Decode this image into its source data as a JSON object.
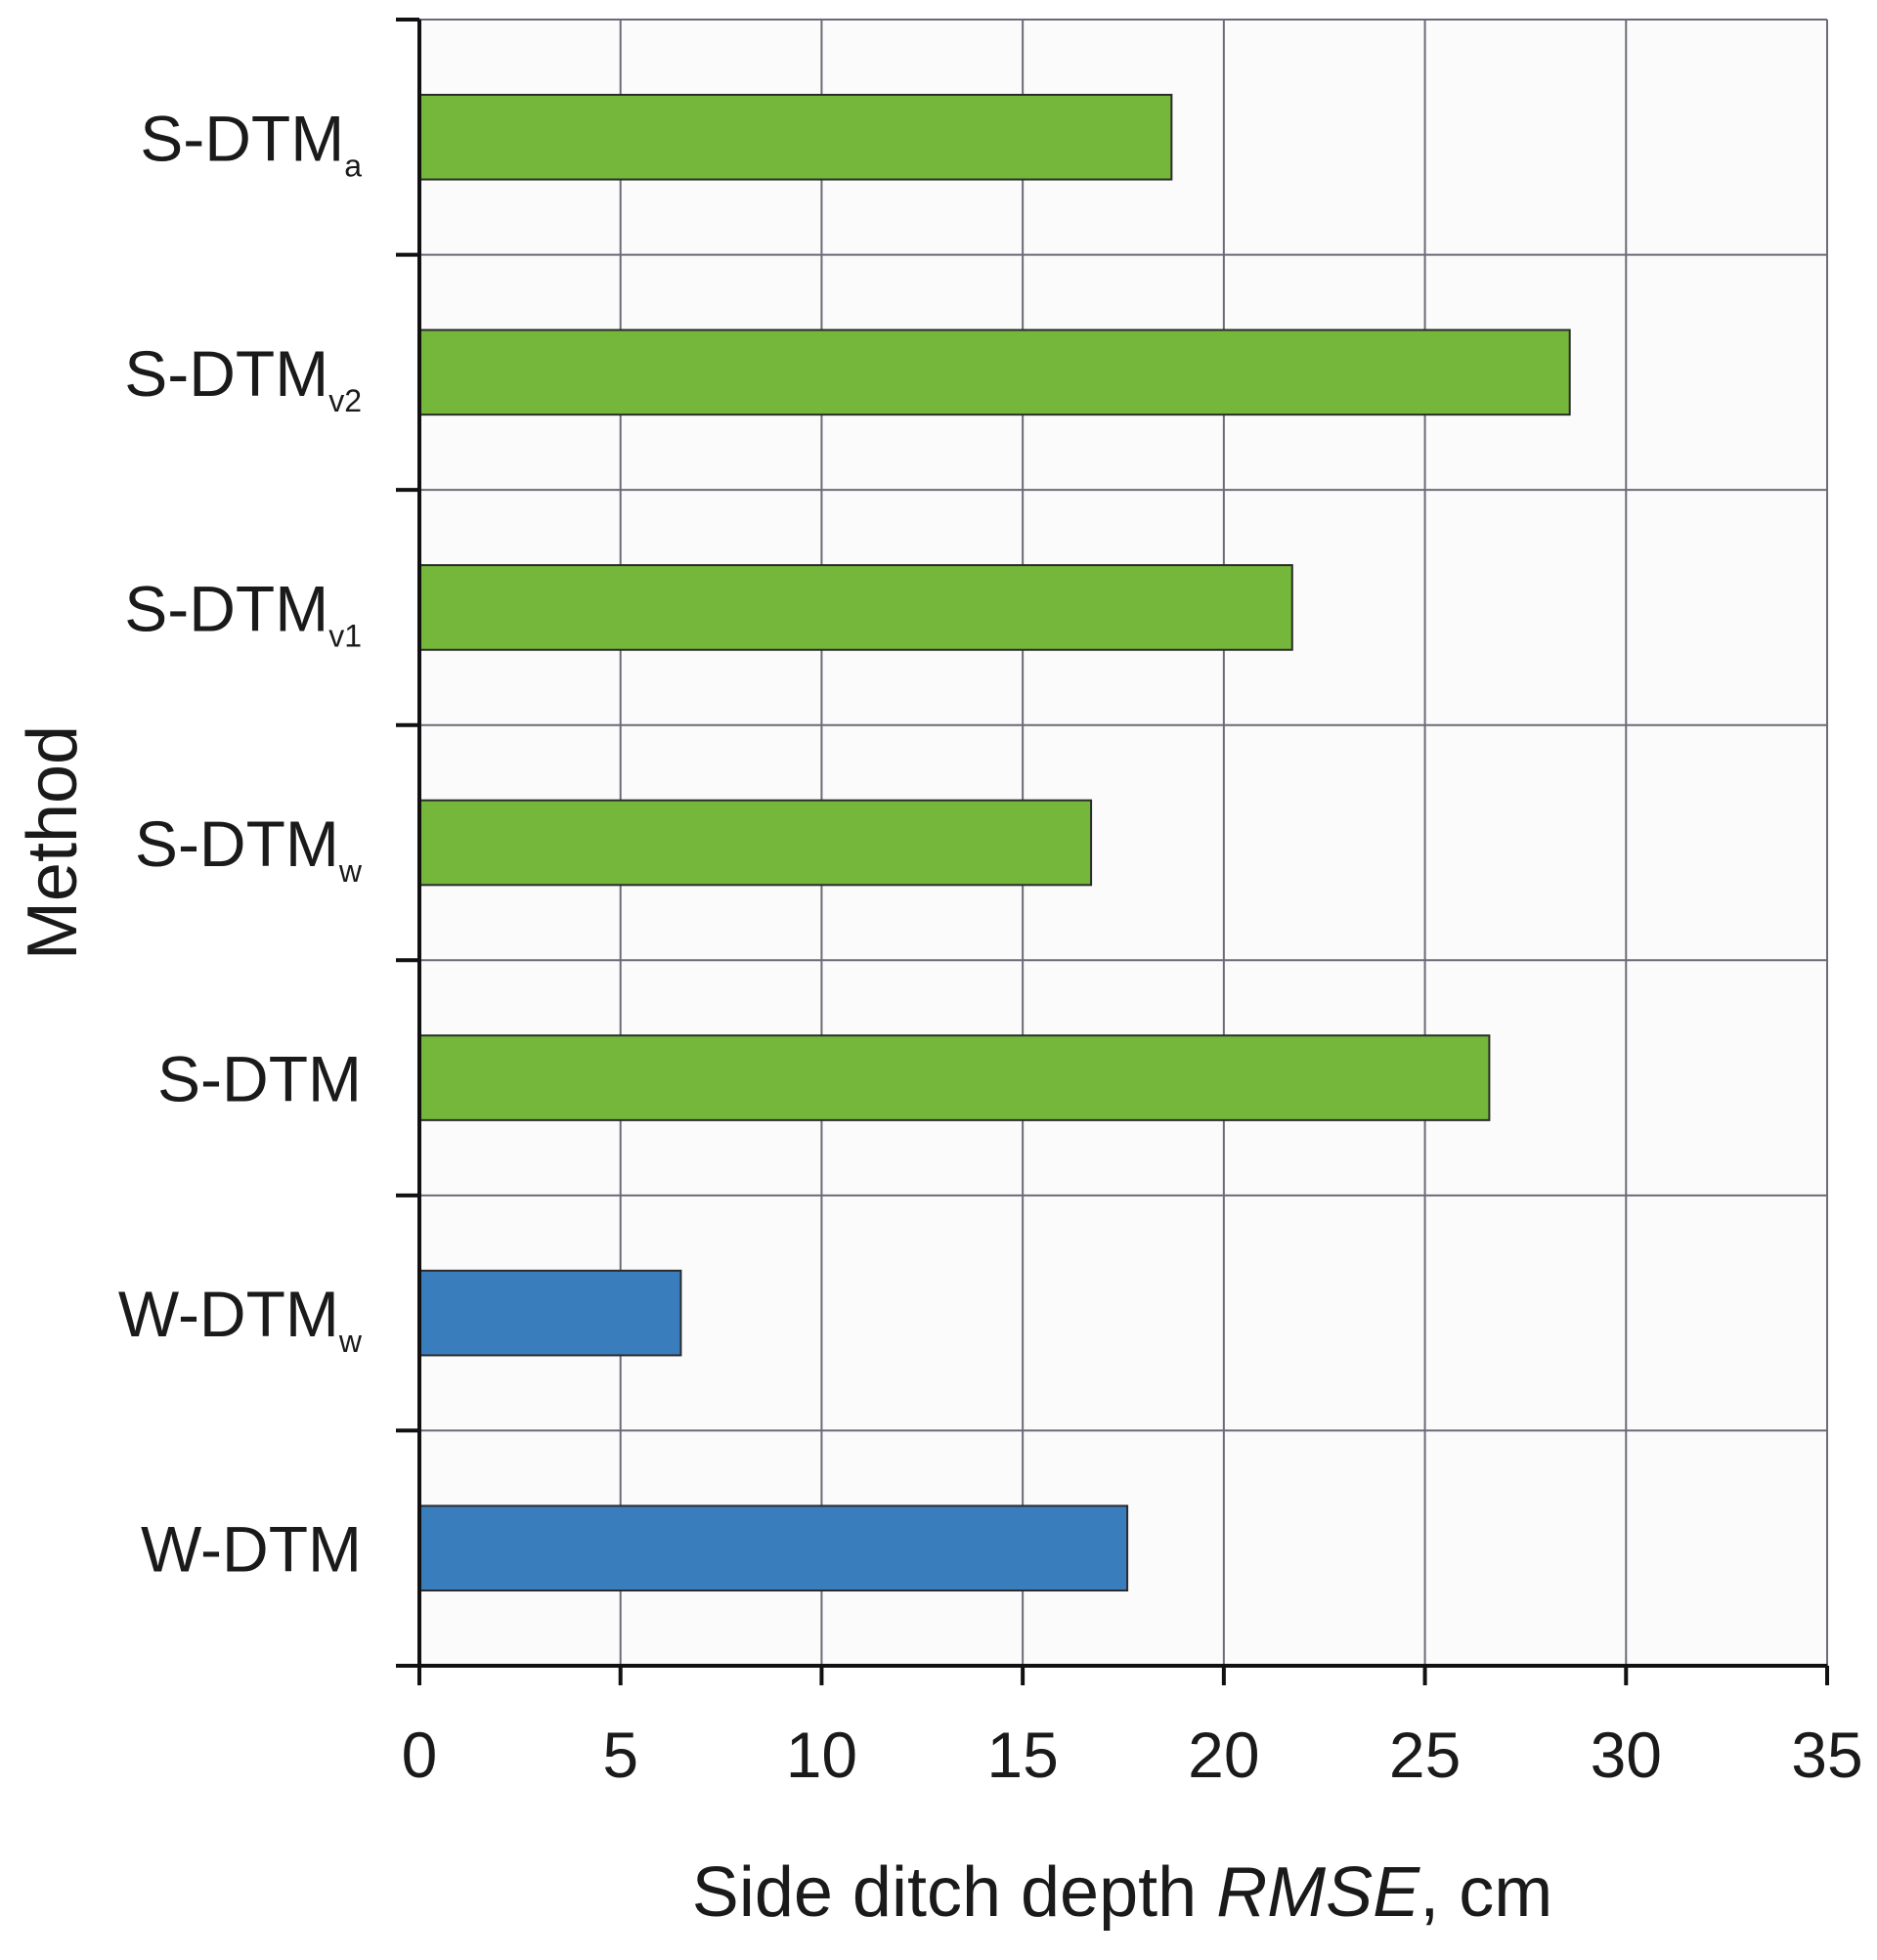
{
  "chart_data": {
    "type": "bar",
    "orientation": "horizontal",
    "title": "",
    "xlabel_main": "Side ditch depth ",
    "xlabel_italic": "RMSE",
    "xlabel_unit": ", cm",
    "ylabel": "Method",
    "xlim": [
      0,
      35
    ],
    "xticks": [
      "0",
      "5",
      "10",
      "15",
      "20",
      "25",
      "30",
      "35"
    ],
    "grid": true,
    "legend": "none",
    "categories": [
      {
        "main": "S-DTM",
        "sub": "a"
      },
      {
        "main": "S-DTM",
        "sub": "v2"
      },
      {
        "main": "S-DTM",
        "sub": "v1"
      },
      {
        "main": "S-DTM",
        "sub": "w"
      },
      {
        "main": "S-DTM",
        "sub": ""
      },
      {
        "main": "W-DTM",
        "sub": "w"
      },
      {
        "main": "W-DTM",
        "sub": ""
      }
    ],
    "values": [
      18.7,
      28.6,
      21.7,
      16.7,
      26.6,
      6.5,
      17.6
    ],
    "bar_colors": [
      "#74b73a",
      "#74b73a",
      "#74b73a",
      "#74b73a",
      "#74b73a",
      "#3a7dbd",
      "#3a7dbd"
    ]
  }
}
